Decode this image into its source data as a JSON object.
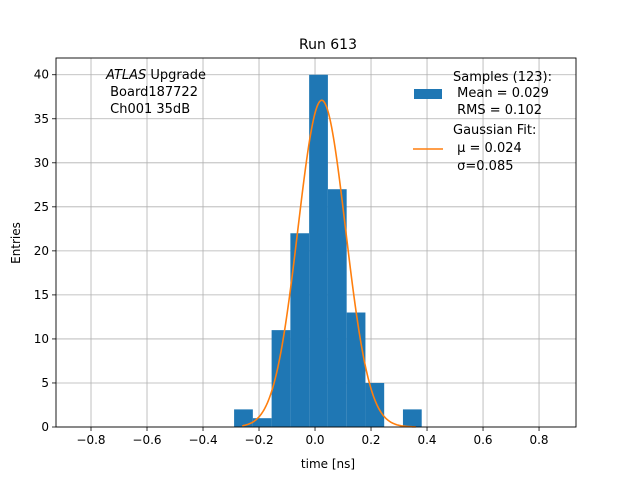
{
  "chart_data": {
    "type": "bar",
    "title": "Run 613",
    "xlabel": "time [ns]",
    "ylabel": "Entries",
    "xlim": [
      -0.925,
      0.932
    ],
    "ylim": [
      0,
      41.9
    ],
    "grid": true,
    "xticks": [
      -0.8,
      -0.6,
      -0.4,
      -0.2,
      0.0,
      0.2,
      0.4,
      0.6,
      0.8
    ],
    "xtick_labels": [
      "−0.8",
      "−0.6",
      "−0.4",
      "−0.2",
      "0.0",
      "0.2",
      "0.4",
      "0.6",
      "0.8"
    ],
    "yticks": [
      0,
      5,
      10,
      15,
      20,
      25,
      30,
      35,
      40
    ],
    "bin_edges": [
      -0.289,
      -0.222,
      -0.155,
      -0.088,
      -0.021,
      0.046,
      0.113,
      0.18,
      0.247,
      0.314,
      0.381
    ],
    "counts": [
      2,
      1,
      11,
      22,
      40,
      27,
      13,
      5,
      0,
      2
    ],
    "fit": {
      "amplitude": 37.1,
      "mu": 0.024,
      "sigma": 0.085,
      "x_range": [
        -0.26,
        0.36
      ]
    },
    "colors": {
      "hist": "#1f77b4",
      "fit": "#ff7f0e",
      "grid": "#b0b0b0"
    },
    "annotation": {
      "italic": "ATLAS",
      "line1_rest": " Upgrade",
      "line2": " Board187722",
      "line3": " Ch001 35dB"
    },
    "legend": {
      "placement": "top-right",
      "hist_lines": [
        "Samples (123):",
        " Mean = 0.029",
        " RMS = 0.102"
      ],
      "fit_lines": [
        "Gaussian Fit:",
        " μ = 0.024",
        " σ=0.085"
      ]
    }
  }
}
